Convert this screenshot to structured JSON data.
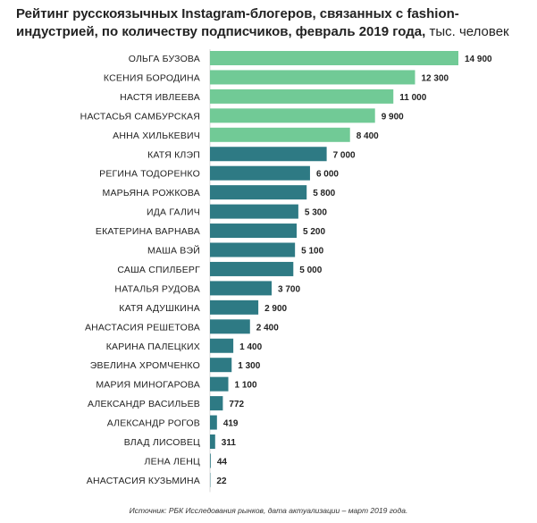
{
  "title": {
    "main": "Рейтинг русскоязычных Instagram-блогеров, связанных с fashion-индустрией, по количеству подписчиков, февраль 2019 года,",
    "unit": "тыс. человек"
  },
  "source": "Источник: РБК Исследования рынков, дата актуализации – март 2019 года.",
  "colors": {
    "highlight": "#71CA96",
    "primary": "#2E7A84"
  },
  "chart_data": {
    "type": "bar",
    "orientation": "horizontal",
    "categories": [
      "ОЛЬГА БУЗОВА",
      "КСЕНИЯ БОРОДИНА",
      "НАСТЯ ИВЛЕЕВА",
      "НАСТАСЬЯ САМБУРСКАЯ",
      "АННА ХИЛЬКЕВИЧ",
      "КАТЯ КЛЭП",
      "РЕГИНА ТОДОРЕНКО",
      "МАРЬЯНА РОЖКОВА",
      "ИДА ГАЛИЧ",
      "ЕКАТЕРИНА ВАРНАВА",
      "МАША ВЭЙ",
      "САША СПИЛБЕРГ",
      "НАТАЛЬЯ РУДОВА",
      "КАТЯ АДУШКИНА",
      "АНАСТАСИЯ РЕШЕТОВА",
      "КАРИНА ПАЛЕЦКИХ",
      "ЭВЕЛИНА ХРОМЧЕНКО",
      "МАРИЯ МИНОГАРОВА",
      "АЛЕКСАНДР ВАСИЛЬЕВ",
      "АЛЕКСАНДР РОГОВ",
      "ВЛАД ЛИСОВЕЦ",
      "ЛЕНА ЛЕНЦ",
      "АНАСТАСИЯ КУЗЬМИНА"
    ],
    "values": [
      14900,
      12300,
      11000,
      9900,
      8400,
      7000,
      6000,
      5800,
      5300,
      5200,
      5100,
      5000,
      3700,
      2900,
      2400,
      1400,
      1300,
      1100,
      772,
      419,
      311,
      44,
      22
    ],
    "value_labels": [
      "14 900",
      "12 300",
      "11 000",
      "9 900",
      "8 400",
      "7 000",
      "6 000",
      "5 800",
      "5 300",
      "5 200",
      "5 100",
      "5 000",
      "3 700",
      "2 900",
      "2 400",
      "1 400",
      "1 300",
      "1 100",
      "772",
      "419",
      "311",
      "44",
      "22"
    ],
    "highlight_top_n": 5,
    "xlim": [
      0,
      14900
    ],
    "grid": false,
    "legend": "none"
  }
}
